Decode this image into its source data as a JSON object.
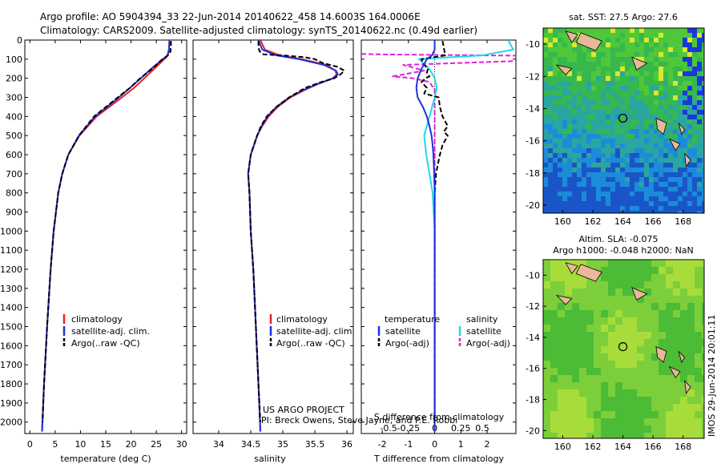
{
  "header": {
    "line1": "Argo profile: AO 5904394_33 22-Jun-2014 20140622_458 14.6003S 164.0006E",
    "line2": "Climatology: CARS2009. Satellite-adjusted climatology: synTS_20140622.nc (0.49d earlier)"
  },
  "colors": {
    "climatology": "#e8211d",
    "satellite": "#1f30e0",
    "argo": "#000000",
    "sal_satellite": "#22d8e8",
    "sal_argo": "#e020e0",
    "land": "#e8b89a"
  },
  "chart_data": [
    {
      "type": "line",
      "id": "temperature",
      "xlabel": "temperature (deg C)",
      "xlim": [
        -1,
        31
      ],
      "ylim": [
        2060,
        0
      ],
      "xticks": [
        "0",
        "5",
        "10",
        "15",
        "20",
        "25",
        "30"
      ],
      "yticks": [
        "0",
        "100",
        "200",
        "300",
        "400",
        "500",
        "600",
        "700",
        "800",
        "900",
        "1000",
        "1100",
        "1200",
        "1300",
        "1400",
        "1500",
        "1600",
        "1700",
        "1800",
        "1900",
        "2000"
      ],
      "legend": [
        "climatology",
        "satellite-adj. clim.",
        "Argo(..raw -QC)"
      ],
      "series": [
        {
          "name": "climatology",
          "depth": [
            0,
            50,
            80,
            100,
            150,
            200,
            250,
            300,
            400,
            500,
            600,
            700,
            800,
            1000,
            1200,
            1500,
            1800,
            2050
          ],
          "values": [
            27.6,
            27.5,
            27.3,
            26.6,
            24.6,
            22.6,
            20.6,
            18.2,
            13.2,
            9.8,
            7.6,
            6.4,
            5.6,
            4.7,
            4.1,
            3.4,
            2.8,
            2.4
          ]
        },
        {
          "name": "satellite-adj. clim.",
          "depth": [
            0,
            50,
            80,
            100,
            150,
            200,
            250,
            300,
            400,
            500,
            600,
            700,
            800,
            1000,
            1200,
            1500,
            1800,
            2050
          ],
          "values": [
            27.6,
            27.5,
            27.2,
            26.3,
            24.0,
            21.9,
            19.8,
            17.6,
            12.9,
            9.7,
            7.6,
            6.4,
            5.6,
            4.7,
            4.1,
            3.4,
            2.8,
            2.4
          ]
        },
        {
          "name": "Argo(..raw -QC)",
          "depth": [
            5,
            30,
            60,
            80,
            90,
            100,
            120,
            150,
            200,
            250,
            300,
            400,
            500,
            600,
            700,
            800,
            1000,
            1200,
            1500,
            1800,
            2000
          ],
          "values": [
            27.9,
            27.9,
            27.8,
            27.3,
            26.8,
            26.2,
            25.4,
            24.2,
            21.8,
            19.8,
            17.4,
            12.7,
            9.7,
            7.6,
            6.4,
            5.6,
            4.7,
            4.1,
            3.4,
            2.8,
            2.5
          ]
        }
      ]
    },
    {
      "type": "line",
      "id": "salinity",
      "xlabel": "salinity",
      "xlim": [
        33.6,
        36.1
      ],
      "ylim": [
        2060,
        0
      ],
      "xticks": [
        "34",
        "34.5",
        "35",
        "35.5",
        "36"
      ],
      "legend": [
        "climatology",
        "satellite-adj. clim.",
        "Argo(..raw -QC)"
      ],
      "series": [
        {
          "name": "climatology",
          "depth": [
            0,
            50,
            80,
            100,
            130,
            160,
            180,
            200,
            230,
            260,
            300,
            350,
            400,
            450,
            500,
            600,
            700,
            800,
            1000,
            1200,
            1500,
            1800,
            2050
          ],
          "values": [
            34.65,
            34.72,
            34.95,
            35.3,
            35.68,
            35.82,
            35.84,
            35.78,
            35.55,
            35.35,
            35.12,
            34.92,
            34.78,
            34.68,
            34.6,
            34.5,
            34.46,
            34.48,
            34.5,
            34.54,
            34.58,
            34.62,
            34.65
          ]
        },
        {
          "name": "satellite-adj. clim.",
          "depth": [
            0,
            50,
            80,
            100,
            130,
            160,
            180,
            200,
            230,
            260,
            300,
            350,
            400,
            450,
            500,
            600,
            700,
            800,
            1000,
            1200,
            1500,
            1800,
            2050
          ],
          "values": [
            34.62,
            34.68,
            34.9,
            35.25,
            35.64,
            35.83,
            35.86,
            35.79,
            35.54,
            35.33,
            35.1,
            34.9,
            34.76,
            34.67,
            34.6,
            34.5,
            34.46,
            34.48,
            34.5,
            34.54,
            34.58,
            34.62,
            34.65
          ]
        },
        {
          "name": "Argo(..raw -QC)",
          "depth": [
            5,
            40,
            60,
            75,
            80,
            90,
            100,
            120,
            140,
            160,
            180,
            190,
            200,
            220,
            250,
            300,
            350,
            400,
            450,
            500,
            600,
            700,
            800,
            1000,
            1200,
            1500,
            1800,
            2000
          ],
          "values": [
            34.62,
            34.62,
            34.64,
            34.7,
            35.0,
            35.35,
            35.5,
            35.62,
            35.85,
            35.96,
            35.9,
            35.85,
            35.8,
            35.6,
            35.35,
            35.1,
            34.9,
            34.75,
            34.66,
            34.6,
            34.5,
            34.46,
            34.48,
            34.5,
            34.54,
            34.58,
            34.62,
            34.65
          ]
        }
      ]
    },
    {
      "type": "line",
      "id": "difference",
      "xlabel": "T difference from climatology",
      "xlabel_top": "S difference from climatology",
      "xlim": [
        -2.8,
        3.1
      ],
      "ylim": [
        2060,
        0
      ],
      "xticks": [
        "-2",
        "-1",
        "0",
        "1",
        "2"
      ],
      "xticks_sal": [
        "-0.5",
        "-0.25",
        "0",
        "0.25",
        "0.5"
      ],
      "legend_headers": [
        "temperature",
        "salinity"
      ],
      "legend_temp": [
        "satellite",
        "Argo(-adj)"
      ],
      "legend_sal": [
        "satellite",
        "Argo(-adj)"
      ],
      "series": [
        {
          "name": "temperature satellite",
          "depth": [
            0,
            50,
            80,
            100,
            150,
            200,
            250,
            300,
            350,
            400,
            450,
            500,
            550,
            600,
            700,
            800,
            1000,
            1500,
            2050
          ],
          "values": [
            0.0,
            0.0,
            -0.1,
            -0.3,
            -0.5,
            -0.65,
            -0.7,
            -0.65,
            -0.45,
            -0.3,
            -0.2,
            -0.12,
            -0.08,
            -0.05,
            -0.02,
            0.0,
            0.0,
            0.0,
            0.0
          ]
        },
        {
          "name": "temperature Argo(-adj)",
          "depth": [
            5,
            40,
            80,
            100,
            130,
            150,
            170,
            190,
            200,
            220,
            250,
            280,
            300,
            350,
            400,
            450,
            480,
            500,
            550,
            600,
            700,
            800,
            1000,
            1500,
            2000
          ],
          "values": [
            0.3,
            0.35,
            0.4,
            -0.5,
            -0.4,
            -0.25,
            -0.3,
            -0.2,
            -0.35,
            -0.5,
            -0.3,
            -0.4,
            0.15,
            0.2,
            0.3,
            0.5,
            0.35,
            0.5,
            0.3,
            0.2,
            0.05,
            0.0,
            0.0,
            0.0,
            0.0
          ]
        },
        {
          "name": "salinity satellite",
          "depth": [
            0,
            50,
            80,
            100,
            150,
            200,
            250,
            300,
            400,
            500,
            600,
            700,
            800,
            1000,
            1500,
            2050
          ],
          "values": [
            0.7,
            0.75,
            0.45,
            -0.15,
            -0.05,
            0.0,
            0.02,
            0.0,
            -0.05,
            -0.1,
            -0.08,
            -0.05,
            -0.02,
            0.0,
            0.0,
            0.0
          ]
        },
        {
          "name": "salinity Argo(-adj)",
          "depth": [
            5,
            40,
            60,
            75,
            85,
            100,
            115,
            130,
            160,
            190,
            200,
            220,
            260,
            300,
            400,
            500,
            600,
            800,
            1000,
            1500,
            2000
          ],
          "values": [
            -1.4,
            -1.2,
            -1.6,
            -0.5,
            1.5,
            1.3,
            0.5,
            -0.3,
            -0.1,
            -0.4,
            -0.2,
            -0.05,
            0.0,
            0.0,
            0.0,
            0.0,
            0.0,
            0.0,
            0.0,
            0.0,
            0.0
          ]
        }
      ]
    },
    {
      "type": "heatmap",
      "id": "sst_map",
      "title": "sat. SST: 27.5 Argo: 27.6",
      "xlim": [
        158.7,
        169.4
      ],
      "ylim": [
        -20.5,
        -9.0
      ],
      "xticks": [
        "160",
        "162",
        "164",
        "166",
        "168"
      ],
      "yticks": [
        "-10",
        "-12",
        "-14",
        "-16",
        "-18",
        "-20"
      ],
      "marker": {
        "lon": 164.0,
        "lat": -14.6
      }
    },
    {
      "type": "heatmap",
      "id": "sla_map",
      "title_line1": "Altim. SLA: -0.075",
      "title_line2": "Argo h1000: -0.048 h2000: NaN",
      "xlim": [
        158.7,
        169.4
      ],
      "ylim": [
        -20.5,
        -9.0
      ],
      "xticks": [
        "160",
        "162",
        "164",
        "166",
        "168"
      ],
      "yticks": [
        "-10",
        "-12",
        "-14",
        "-16",
        "-18",
        "-20"
      ],
      "marker": {
        "lon": 164.0,
        "lat": -14.6
      }
    }
  ],
  "credits": {
    "project": "US ARGO PROJECT",
    "pi": "PI: Breck Owens, Steve Jayne, and P.E. Robbi",
    "stamp": "IMOS 29-Jun-2014 20:01:11"
  }
}
